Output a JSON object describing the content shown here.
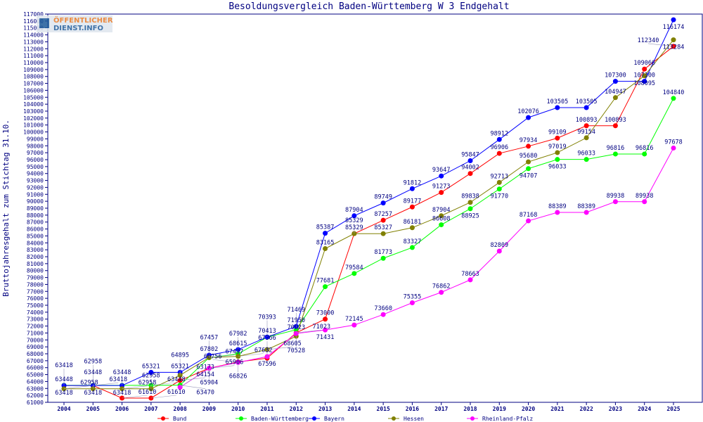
{
  "chart_data": {
    "type": "line",
    "title": "Besoldungsvergleich Baden-Württemberg W 3 Endgehalt",
    "ylabel": "Bruttojahresgehalt zum Stichtag 31.10.",
    "xlabel": "",
    "ylim": [
      61000,
      117000
    ],
    "ytick_step": 1000,
    "grid": false,
    "legend_position": "bottom",
    "categories": [
      "2004",
      "2005",
      "2006",
      "2007",
      "2008",
      "2009",
      "2010",
      "2011",
      "2012",
      "2013",
      "2014",
      "2015",
      "2016",
      "2017",
      "2018",
      "2019",
      "2020",
      "2021",
      "2022",
      "2023",
      "2024",
      "2025"
    ],
    "series": [
      {
        "name": "Bund",
        "color": "#ff0000",
        "values": [
          63418,
          63418,
          61610,
          61610,
          64154,
          65906,
          66826,
          67366,
          71023,
          73000,
          85329,
          87257,
          89177,
          91273,
          94002,
          96906,
          97934,
          99109,
          100893,
          100893,
          109066,
          112340
        ]
      },
      {
        "name": "Baden-Württemberg",
        "color": "#00ff00",
        "values": [
          63448,
          63448,
          63448,
          63448,
          63470,
          67437,
          67982,
          70393,
          71469,
          77681,
          79584,
          81773,
          83327,
          86608,
          88925,
          91770,
          94707,
          96033,
          96033,
          96816,
          96816,
          104840
        ]
      },
      {
        "name": "Bayern",
        "color": "#0000ff",
        "values": [
          63418,
          63418,
          63418,
          65321,
          65321,
          67802,
          68615,
          70413,
          71950,
          85387,
          87904,
          89749,
          91812,
          93647,
          95847,
          98912,
          102076,
          103505,
          103505,
          107300,
          107300,
          116174
        ]
      },
      {
        "name": "Hessen",
        "color": "#808000",
        "values": [
          62958,
          62958,
          62958,
          62958,
          64895,
          67457,
          67632,
          68605,
          70528,
          83165,
          85329,
          85327,
          86181,
          87904,
          89838,
          92713,
          95680,
          97019,
          99154,
          104947,
          108095,
          113284
        ]
      },
      {
        "name": "Rheinland-Pfalz",
        "color": "#ff00ff",
        "values": [
          null,
          null,
          null,
          null,
          63173,
          65904,
          66756,
          67596,
          70923,
          71431,
          72145,
          73660,
          75355,
          76862,
          78663,
          82809,
          87168,
          88389,
          88389,
          89938,
          89938,
          97678
        ]
      }
    ]
  },
  "logo": {
    "line1": "ÖFFENTLICHER",
    "line2": "DIENST.INFO"
  },
  "colors": {
    "axis": "#000080",
    "text": "#000080"
  }
}
